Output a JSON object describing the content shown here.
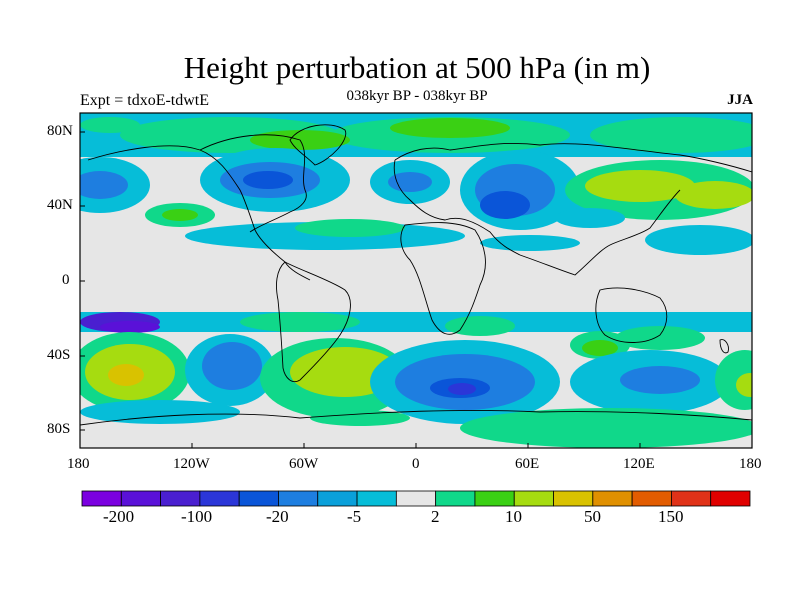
{
  "title": "Height perturbation at 500 hPa (in m)",
  "experiment_label": "Expt = tdxoE-tdwtE",
  "period_label": "038kyr BP - 038kyr BP",
  "season_label": "JJA",
  "map": {
    "projection": "cylindrical equidistant",
    "lon_range": [
      -180,
      180
    ],
    "lat_range": [
      -90,
      90
    ],
    "lon_tick_labels": [
      "180",
      "120W",
      "60W",
      "0",
      "60E",
      "120E",
      "180"
    ],
    "lat_tick_labels": [
      "80N",
      "40N",
      "0",
      "40S",
      "80S"
    ],
    "background_color": "#e6e6e6",
    "coastline_color": "#000000"
  },
  "colorbar": {
    "colors": [
      "#7b00e0",
      "#5a11d8",
      "#4a1fd0",
      "#2b36d8",
      "#0a55d8",
      "#1e7ee0",
      "#0aa0da",
      "#06bdd8",
      "#e6e6e6",
      "#10d88a",
      "#3ad014",
      "#a6dc10",
      "#d9c200",
      "#e09000",
      "#e25c00",
      "#e03218",
      "#e00000"
    ],
    "tick_labels": [
      "-200",
      "-100",
      "-20",
      "-5",
      "2",
      "10",
      "50",
      "150"
    ]
  }
}
